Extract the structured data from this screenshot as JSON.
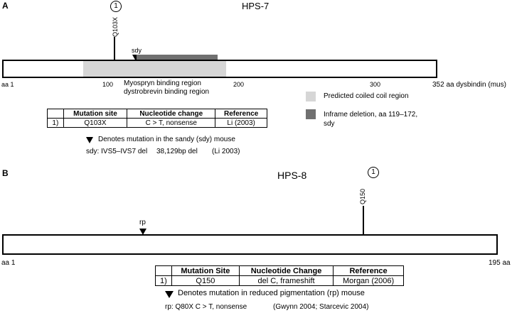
{
  "panel_a": {
    "letter": "A",
    "title": "HPS-7",
    "mutation_marker": "1",
    "mutation_label": "Q103X",
    "sdy_label": "sdy",
    "axis_start": "aa 1",
    "tick_100": "100",
    "tick_200": "200",
    "tick_300": "300",
    "axis_end": "352 aa dysbindin (mus)",
    "region_line1": "Myospryn binding region",
    "region_line2": "dystrobrevin binding region",
    "legend_coil": "Predicted coiled coil region",
    "legend_deletion_line1": "Inframe deletion, aa 119–172,",
    "legend_deletion_line2": "sdy",
    "table": {
      "headers": [
        "",
        "Mutation site",
        "Nucleotide change",
        "Reference"
      ],
      "rows": [
        [
          "1)",
          "Q103X",
          "C > T, nonsense",
          "Li (2003)"
        ]
      ]
    },
    "note_line1": "Denotes mutation in the sandy (sdy) mouse",
    "note_line2_a": "sdy: IVS5–IVS7 del",
    "note_line2_b": "38,129bp del",
    "note_line2_c": "(Li 2003)",
    "colors": {
      "coil": "#d6d6d6",
      "deletion": "#707070"
    }
  },
  "panel_b": {
    "letter": "B",
    "title": "HPS-8",
    "mutation_marker": "1",
    "mutation_label": "Q150",
    "rp_label": "rp",
    "axis_start": "aa 1",
    "axis_end": "195 aa",
    "table": {
      "headers": [
        "",
        "Mutation Site",
        "Nucleotide Change",
        "Reference"
      ],
      "rows": [
        [
          "1)",
          "Q150",
          "del C, frameshift",
          "Morgan (2006)"
        ]
      ]
    },
    "note_line1": "Denotes mutation in reduced pigmentation (rp) mouse",
    "note_line2_a": "rp: Q80X C > T, nonsense",
    "note_line2_b": "(Gwynn 2004; Starcevic 2004)"
  }
}
